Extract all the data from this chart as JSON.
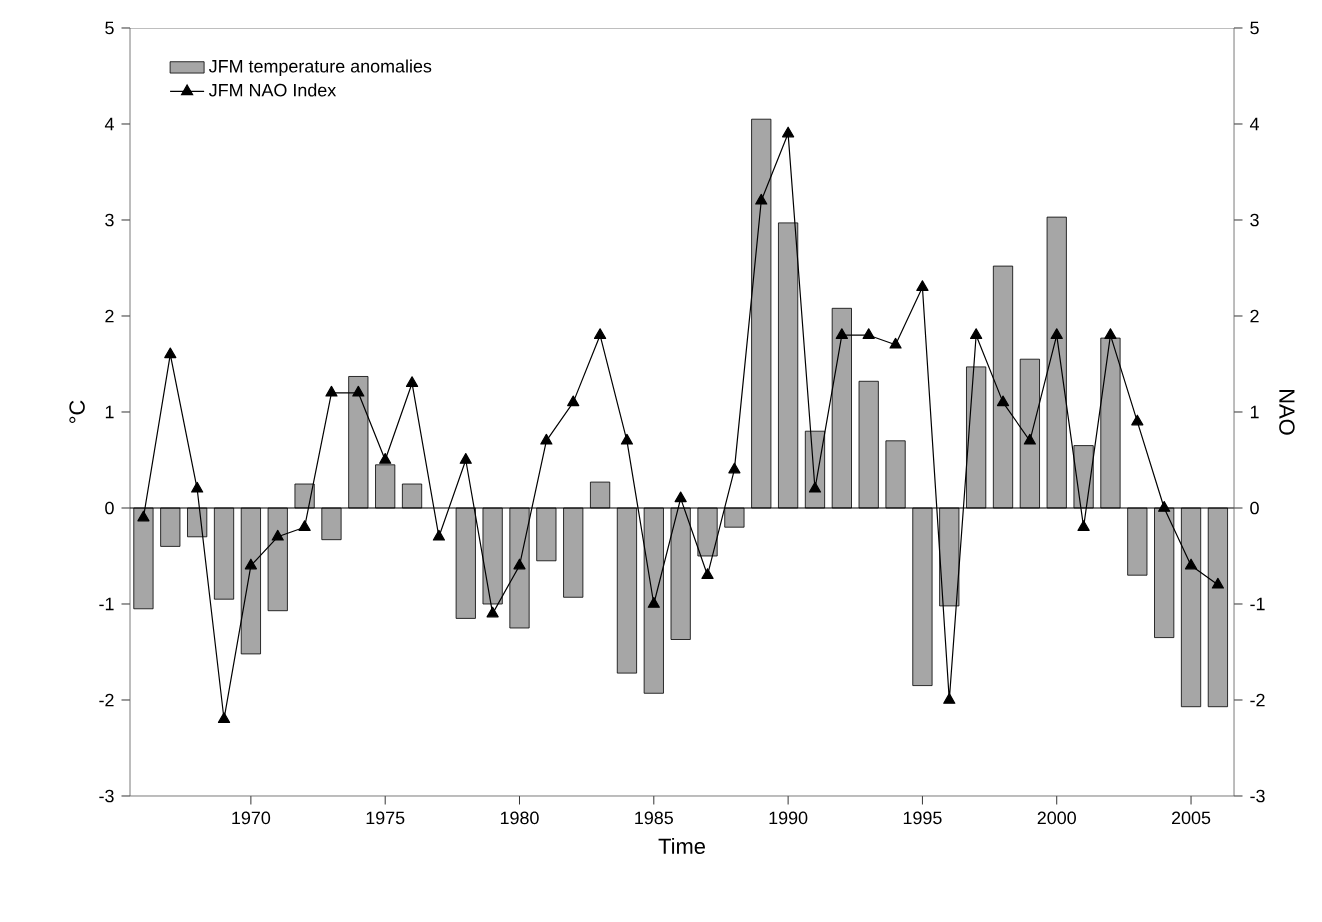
{
  "chart_data": {
    "type": "bar",
    "xlabel": "Time",
    "ylabel": "°C",
    "y2label": "NAO",
    "x": [
      1966,
      1967,
      1968,
      1969,
      1970,
      1971,
      1972,
      1973,
      1974,
      1975,
      1976,
      1977,
      1978,
      1979,
      1980,
      1981,
      1982,
      1983,
      1984,
      1985,
      1986,
      1987,
      1988,
      1989,
      1990,
      1991,
      1992,
      1993,
      1994,
      1995,
      1996,
      1997,
      1998,
      1999,
      2000,
      2001,
      2002,
      2003,
      2004,
      2005,
      2006
    ],
    "xlim": [
      1965.5,
      2006.6
    ],
    "xticks": [
      1970,
      1975,
      1980,
      1985,
      1990,
      1995,
      2000,
      2005
    ],
    "ylim": [
      -3,
      5
    ],
    "yticks": [
      -3,
      -2,
      -1,
      0,
      1,
      2,
      3,
      4,
      5
    ],
    "y2lim": [
      -3,
      5
    ],
    "y2ticks": [
      -3,
      -2,
      -1,
      0,
      1,
      2,
      3,
      4,
      5
    ],
    "legend": "top left",
    "ref_lines": [
      {
        "axis": "y",
        "value": 0,
        "color": "#000000"
      }
    ],
    "series": [
      {
        "name": "JFM temperature anomalies",
        "color": "#a6a6a6",
        "values": [
          -1.05,
          -0.4,
          -0.3,
          -0.95,
          -1.52,
          -1.07,
          0.25,
          -0.33,
          1.37,
          0.45,
          0.25,
          null,
          -1.15,
          -1.0,
          -1.25,
          -0.55,
          -0.93,
          0.27,
          -1.72,
          -1.93,
          -1.37,
          -0.5,
          -0.2,
          4.05,
          2.97,
          0.8,
          2.08,
          1.32,
          0.7,
          -1.85,
          -1.02,
          1.47,
          2.52,
          1.55,
          3.03,
          0.65,
          1.77,
          -0.7,
          -1.35,
          -2.07,
          -2.07
        ]
      },
      {
        "name": "JFM NAO Index",
        "type": "line",
        "axis": "y2",
        "marker": "triangle",
        "color": "#000000",
        "values": [
          -0.1,
          1.6,
          0.2,
          -2.2,
          -0.6,
          -0.3,
          -0.2,
          1.2,
          1.2,
          0.5,
          1.3,
          -0.3,
          0.5,
          -1.1,
          -0.6,
          0.7,
          1.1,
          1.8,
          0.7,
          -1.0,
          0.1,
          -0.7,
          0.4,
          3.2,
          3.9,
          0.2,
          1.8,
          1.8,
          1.7,
          2.3,
          -2.0,
          1.8,
          1.1,
          0.7,
          1.8,
          -0.2,
          1.8,
          0.9,
          0.0,
          -0.6,
          -0.8
        ]
      }
    ]
  }
}
